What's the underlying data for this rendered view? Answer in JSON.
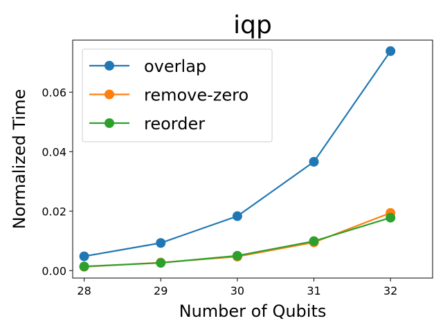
{
  "chart_data": {
    "type": "line",
    "title": "iqp",
    "xlabel": "Number of Qubits",
    "ylabel": "Normalized Time",
    "x": [
      28,
      29,
      30,
      31,
      32
    ],
    "xticks": [
      "28",
      "29",
      "30",
      "31",
      "32"
    ],
    "yticks": [
      "0.00",
      "0.02",
      "0.04",
      "0.06"
    ],
    "xlim": [
      27.85,
      32.55
    ],
    "ylim": [
      -0.0025,
      0.0775
    ],
    "grid": false,
    "legend_position": "top-left",
    "series": [
      {
        "name": "overlap",
        "color": "#1f77b4",
        "values": [
          0.0048,
          0.0093,
          0.0183,
          0.0366,
          0.0738
        ]
      },
      {
        "name": "remove-zero",
        "color": "#ff7f0e",
        "values": [
          0.0013,
          0.0027,
          0.0047,
          0.0095,
          0.0194
        ]
      },
      {
        "name": "reorder",
        "color": "#2ca02c",
        "values": [
          0.0014,
          0.0026,
          0.005,
          0.0099,
          0.0178
        ]
      }
    ]
  }
}
